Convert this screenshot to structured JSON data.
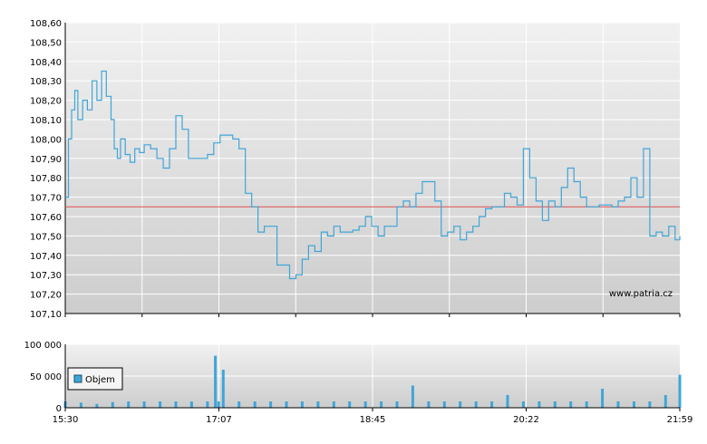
{
  "watermark": "www.patria.cz",
  "legend_label": "Objem",
  "chart_data": [
    {
      "type": "line",
      "name": "price",
      "ylim": [
        107.1,
        108.6
      ],
      "yticks": [
        107.1,
        107.2,
        107.3,
        107.4,
        107.5,
        107.6,
        107.7,
        107.8,
        107.9,
        108.0,
        108.1,
        108.2,
        108.3,
        108.4,
        108.5,
        108.6
      ],
      "ytick_labels": [
        "107,10",
        "107,20",
        "107,30",
        "107,40",
        "107,50",
        "107,60",
        "107,70",
        "107,80",
        "107,90",
        "108,00",
        "108,10",
        "108,20",
        "108,30",
        "108,40",
        "108,50",
        "108,60"
      ],
      "xlim": [
        "15:30",
        "21:59"
      ],
      "reference_line": 107.65,
      "colors": {
        "line": "#3fa5d8",
        "reference": "#e05050",
        "grid": "#ffffff",
        "plot_top": "#f1f1f1",
        "plot_bottom": "#cdcdcd"
      },
      "x": [
        "15:30",
        "15:32",
        "15:34",
        "15:36",
        "15:38",
        "15:41",
        "15:44",
        "15:47",
        "15:50",
        "15:53",
        "15:56",
        "15:59",
        "16:01",
        "16:03",
        "16:05",
        "16:08",
        "16:11",
        "16:14",
        "16:17",
        "16:20",
        "16:24",
        "16:28",
        "16:32",
        "16:36",
        "16:40",
        "16:44",
        "16:48",
        "16:52",
        "16:56",
        "17:00",
        "17:04",
        "17:08",
        "17:12",
        "17:16",
        "17:20",
        "17:24",
        "17:28",
        "17:32",
        "17:36",
        "17:40",
        "17:44",
        "17:48",
        "17:52",
        "17:56",
        "18:00",
        "18:04",
        "18:08",
        "18:12",
        "18:16",
        "18:20",
        "18:24",
        "18:28",
        "18:32",
        "18:36",
        "18:40",
        "18:44",
        "18:48",
        "18:52",
        "18:56",
        "19:00",
        "19:04",
        "19:08",
        "19:12",
        "19:16",
        "19:20",
        "19:24",
        "19:28",
        "19:32",
        "19:36",
        "19:40",
        "19:44",
        "19:48",
        "19:52",
        "19:56",
        "20:00",
        "20:04",
        "20:08",
        "20:12",
        "20:16",
        "20:20",
        "20:24",
        "20:28",
        "20:32",
        "20:36",
        "20:40",
        "20:44",
        "20:48",
        "20:52",
        "20:56",
        "21:00",
        "21:04",
        "21:08",
        "21:12",
        "21:16",
        "21:20",
        "21:24",
        "21:28",
        "21:32",
        "21:36",
        "21:40",
        "21:44",
        "21:48",
        "21:52",
        "21:56",
        "21:59"
      ],
      "values": [
        107.7,
        108.0,
        108.15,
        108.25,
        108.1,
        108.2,
        108.15,
        108.3,
        108.2,
        108.35,
        108.22,
        108.1,
        107.95,
        107.9,
        108.0,
        107.92,
        107.88,
        107.95,
        107.93,
        107.97,
        107.95,
        107.9,
        107.85,
        107.95,
        108.12,
        108.05,
        107.9,
        107.9,
        107.9,
        107.92,
        107.98,
        108.02,
        108.02,
        108.0,
        107.95,
        107.72,
        107.65,
        107.52,
        107.55,
        107.55,
        107.35,
        107.35,
        107.28,
        107.3,
        107.38,
        107.45,
        107.42,
        107.52,
        107.5,
        107.55,
        107.52,
        107.52,
        107.53,
        107.55,
        107.6,
        107.55,
        107.5,
        107.55,
        107.55,
        107.65,
        107.68,
        107.65,
        107.72,
        107.78,
        107.78,
        107.68,
        107.5,
        107.52,
        107.55,
        107.48,
        107.52,
        107.55,
        107.6,
        107.64,
        107.65,
        107.65,
        107.72,
        107.7,
        107.66,
        107.95,
        107.8,
        107.68,
        107.58,
        107.68,
        107.65,
        107.75,
        107.85,
        107.78,
        107.7,
        107.65,
        107.65,
        107.66,
        107.66,
        107.65,
        107.68,
        107.7,
        107.8,
        107.7,
        107.95,
        107.5,
        107.52,
        107.5,
        107.55,
        107.48,
        107.5
      ]
    },
    {
      "type": "bar",
      "name": "Objem",
      "ylim": [
        0,
        100000
      ],
      "yticks": [
        0,
        50000,
        100000
      ],
      "ytick_labels": [
        "0",
        "50 000",
        "100 000"
      ],
      "xticks": [
        "15:30",
        "17:07",
        "18:45",
        "20:22",
        "21:59"
      ],
      "colors": {
        "bar": "#3fa5d8",
        "plot_top": "#f1f1f1",
        "plot_bottom": "#cdcdcd"
      },
      "x": [
        "15:30",
        "15:40",
        "15:50",
        "16:00",
        "16:10",
        "16:20",
        "16:30",
        "16:40",
        "16:50",
        "17:00",
        "17:05",
        "17:07",
        "17:10",
        "17:20",
        "17:30",
        "17:40",
        "17:50",
        "18:00",
        "18:10",
        "18:20",
        "18:30",
        "18:40",
        "18:50",
        "19:00",
        "19:10",
        "19:20",
        "19:30",
        "19:40",
        "19:50",
        "20:00",
        "20:10",
        "20:20",
        "20:30",
        "20:40",
        "20:50",
        "21:00",
        "21:10",
        "21:20",
        "21:30",
        "21:40",
        "21:50",
        "21:59"
      ],
      "values": [
        10000,
        8000,
        6000,
        9000,
        10000,
        10000,
        10000,
        10000,
        10000,
        10000,
        82000,
        10000,
        60000,
        10000,
        10000,
        10000,
        10000,
        10000,
        10000,
        10000,
        10000,
        10000,
        10000,
        10000,
        35000,
        10000,
        10000,
        10000,
        10000,
        10000,
        20000,
        10000,
        10000,
        10000,
        10000,
        10000,
        30000,
        10000,
        10000,
        10000,
        20000,
        52000
      ]
    }
  ]
}
